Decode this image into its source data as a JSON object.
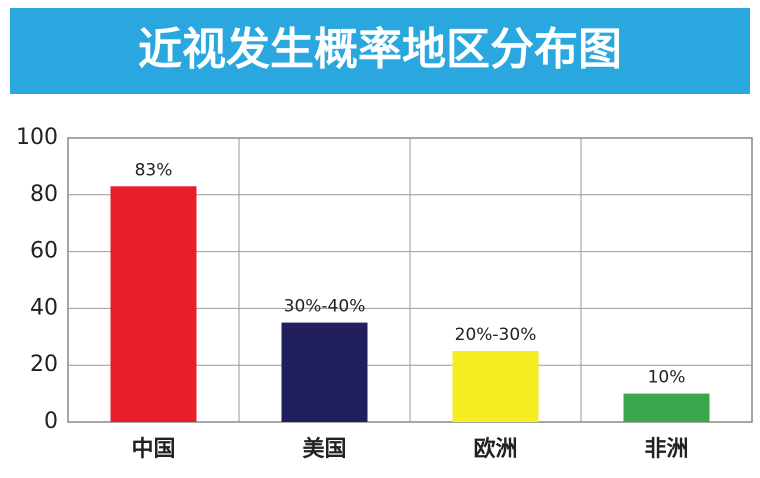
{
  "chart_data": {
    "type": "bar",
    "title": "近视发生概率地区分布图",
    "categories": [
      "中国",
      "美国",
      "欧洲",
      "非洲"
    ],
    "values": [
      83,
      35,
      25,
      10
    ],
    "value_labels": [
      "83%",
      "30%-40%",
      "20%-30%",
      "10%"
    ],
    "colors": [
      "#e81f2a",
      "#221f5e",
      "#f6ec1f",
      "#3aa64b"
    ],
    "ylim": [
      0,
      100
    ],
    "yticks": [
      0,
      20,
      40,
      60,
      80,
      100
    ],
    "grid": true
  }
}
